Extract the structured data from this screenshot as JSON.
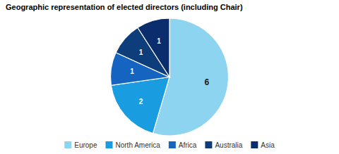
{
  "chart_data": {
    "type": "pie",
    "title": "Geographic representation of elected directors (including Chair)",
    "categories": [
      "Europe",
      "North America",
      "Africa",
      "Australia",
      "Asia"
    ],
    "values": [
      6,
      2,
      1,
      1,
      1
    ],
    "colors": [
      "#8dd4f0",
      "#1a9de0",
      "#1565c0",
      "#0d3d7a",
      "#0a2d6e"
    ],
    "data_labels": true,
    "legend": "bottom"
  }
}
